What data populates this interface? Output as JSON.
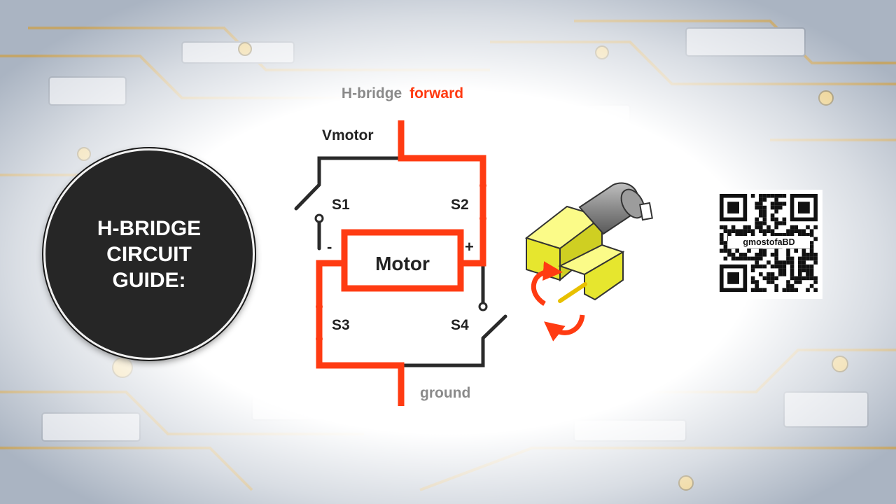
{
  "badge": {
    "lines": [
      "H-BRIDGE",
      "CIRCUIT",
      "GUIDE:"
    ]
  },
  "diagram": {
    "title_part1": "H-bridge",
    "title_part2": "forward",
    "vmotor_label": "Vmotor",
    "ground_label": "ground",
    "motor_label": "Motor",
    "minus_label": "-",
    "plus_label": "+",
    "switches": [
      "S1",
      "S2",
      "S3",
      "S4"
    ]
  },
  "qr": {
    "label": "gmostofaBD"
  },
  "colors": {
    "active_path": "#ff3b12",
    "inactive_path": "#2a2a2a",
    "title_gray": "#8a8a8a",
    "badge_bg": "#262626",
    "gearbox_yellow": "#f2f23a"
  }
}
